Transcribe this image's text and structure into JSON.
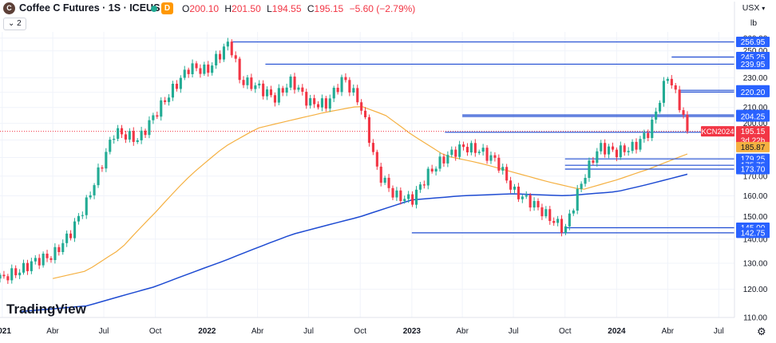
{
  "header": {
    "symbol_initial": "C",
    "title": "Coffee C Futures · 1S · ICEUS",
    "delay_badge": "D",
    "ohlc": {
      "o_label": "O",
      "o": "200.10",
      "h_label": "H",
      "h": "201.50",
      "l_label": "L",
      "l": "194.55",
      "c_label": "C",
      "c": "195.15",
      "change": "−5.60 (−2.79%)"
    },
    "collapse_label": "⌄ 2"
  },
  "scale": {
    "currency": "USX",
    "unit": "lb"
  },
  "colors": {
    "up": "#22ab94",
    "down": "#f23645",
    "ma_fast": "#f5b041",
    "ma_slow": "#1e4bd2",
    "level": "#1e4bd2",
    "level_label_bg": "#2962ff",
    "last": "#f23645"
  },
  "watermark": "TradingView",
  "chart_data": {
    "type": "line",
    "title": "Coffee C Futures · 1S · ICEUS",
    "y_scale": "log",
    "ylim": [
      110,
      265
    ],
    "xlim": [
      "2020-12-28",
      "2024-07-29"
    ],
    "y_ticks": [
      110,
      120,
      130,
      140,
      150,
      160,
      170,
      180,
      190,
      200,
      210,
      220,
      230,
      250,
      260
    ],
    "x_tick_labels": [
      {
        "label": "2021",
        "date": "2021-01-01"
      },
      {
        "label": "Abr",
        "date": "2021-04-01"
      },
      {
        "label": "Jul",
        "date": "2021-07-01"
      },
      {
        "label": "Oct",
        "date": "2021-10-01"
      },
      {
        "label": "2022",
        "date": "2022-01-01"
      },
      {
        "label": "Abr",
        "date": "2022-04-01"
      },
      {
        "label": "Jul",
        "date": "2022-07-01"
      },
      {
        "label": "Oct",
        "date": "2022-10-01"
      },
      {
        "label": "2023",
        "date": "2023-01-01"
      },
      {
        "label": "Abr",
        "date": "2023-04-01"
      },
      {
        "label": "Jul",
        "date": "2023-07-01"
      },
      {
        "label": "Oct",
        "date": "2023-10-01"
      },
      {
        "label": "2024",
        "date": "2024-01-01"
      },
      {
        "label": "Abr",
        "date": "2024-04-01"
      },
      {
        "label": "Jul",
        "date": "2024-07-01"
      }
    ],
    "series": [
      {
        "kind": "close",
        "points": [
          [
            "2020-12-28",
            124
          ],
          [
            "2021-02-01",
            127
          ],
          [
            "2021-03-01",
            131
          ],
          [
            "2021-04-01",
            133
          ],
          [
            "2021-05-01",
            142
          ],
          [
            "2021-06-01",
            157
          ],
          [
            "2021-07-01",
            179
          ],
          [
            "2021-07-20",
            195
          ],
          [
            "2021-09-01",
            190
          ],
          [
            "2021-10-01",
            206
          ],
          [
            "2021-11-01",
            222
          ],
          [
            "2021-12-01",
            238
          ],
          [
            "2022-01-01",
            235
          ],
          [
            "2022-02-10",
            257
          ],
          [
            "2022-03-01",
            228
          ],
          [
            "2022-04-01",
            224
          ],
          [
            "2022-05-01",
            216
          ],
          [
            "2022-06-01",
            228
          ],
          [
            "2022-07-01",
            213
          ],
          [
            "2022-08-01",
            212
          ],
          [
            "2022-09-01",
            230
          ],
          [
            "2022-10-01",
            212
          ],
          [
            "2022-11-01",
            172
          ],
          [
            "2022-12-01",
            160
          ],
          [
            "2023-01-01",
            158
          ],
          [
            "2023-02-01",
            172
          ],
          [
            "2023-03-01",
            180
          ],
          [
            "2023-04-01",
            186
          ],
          [
            "2023-05-01",
            184
          ],
          [
            "2023-06-01",
            178
          ],
          [
            "2023-07-01",
            162
          ],
          [
            "2023-08-01",
            157
          ],
          [
            "2023-09-01",
            150
          ],
          [
            "2023-10-01",
            144
          ],
          [
            "2023-11-01",
            168
          ],
          [
            "2023-12-01",
            186
          ],
          [
            "2024-01-01",
            183
          ],
          [
            "2024-02-01",
            186
          ],
          [
            "2024-03-01",
            196
          ],
          [
            "2024-04-01",
            232
          ],
          [
            "2024-04-22",
            212
          ],
          [
            "2024-05-06",
            195.15
          ]
        ]
      },
      {
        "kind": "ma_fast",
        "points": [
          [
            "2021-04-01",
            124
          ],
          [
            "2021-06-01",
            127
          ],
          [
            "2021-08-01",
            136
          ],
          [
            "2021-10-01",
            152
          ],
          [
            "2021-12-01",
            170
          ],
          [
            "2022-02-01",
            186
          ],
          [
            "2022-04-01",
            197
          ],
          [
            "2022-06-01",
            202
          ],
          [
            "2022-08-01",
            207
          ],
          [
            "2022-10-01",
            211
          ],
          [
            "2022-11-15",
            205
          ],
          [
            "2023-01-01",
            193
          ],
          [
            "2023-03-01",
            181
          ],
          [
            "2023-05-01",
            177
          ],
          [
            "2023-07-01",
            172
          ],
          [
            "2023-09-01",
            167
          ],
          [
            "2023-11-01",
            163
          ],
          [
            "2024-01-01",
            168
          ],
          [
            "2024-03-01",
            174
          ],
          [
            "2024-05-06",
            182
          ]
        ]
      },
      {
        "kind": "ma_slow",
        "points": [
          [
            "2021-02-01",
            112
          ],
          [
            "2021-06-01",
            114
          ],
          [
            "2021-10-01",
            121
          ],
          [
            "2022-02-01",
            131
          ],
          [
            "2022-06-01",
            142
          ],
          [
            "2022-10-01",
            150
          ],
          [
            "2023-01-01",
            158
          ],
          [
            "2023-04-01",
            160
          ],
          [
            "2023-07-01",
            161
          ],
          [
            "2023-10-01",
            160
          ],
          [
            "2024-01-01",
            162
          ],
          [
            "2024-03-01",
            166
          ],
          [
            "2024-05-06",
            171
          ]
        ]
      }
    ],
    "levels": [
      {
        "label": "256.95",
        "value": 256.95,
        "from": "2022-02-14"
      },
      {
        "label": "245.25",
        "value": 245.25,
        "from": "2024-04-08"
      },
      {
        "label": "239.95",
        "value": 239.95,
        "from": "2022-04-15"
      },
      {
        "label": "221.40",
        "value": 221.4,
        "from": "2024-04-22"
      },
      {
        "label": "220.20",
        "value": 220.2,
        "from": "2024-04-22"
      },
      {
        "label": "205.20",
        "value": 205.2,
        "from": "2023-04-01"
      },
      {
        "label": "204.25",
        "value": 204.25,
        "from": "2023-04-01"
      },
      {
        "label": "194.55",
        "value": 194.55,
        "from": "2023-03-01"
      },
      {
        "label": "179.25",
        "value": 179.25,
        "from": "2023-10-01"
      },
      {
        "label": "175.75",
        "value": 175.75,
        "from": "2023-10-01"
      },
      {
        "label": "173.70",
        "value": 173.7,
        "from": "2023-10-01"
      },
      {
        "label": "145.00",
        "value": 145.0,
        "from": "2023-10-01"
      },
      {
        "label": "142.75",
        "value": 142.75,
        "from": "2023-01-01"
      }
    ],
    "price_badges": [
      {
        "ticker": "KCN2024",
        "value": "195.15"
      },
      {
        "countdown": "3d 22h"
      },
      {
        "ma_value": "185.87"
      }
    ]
  }
}
